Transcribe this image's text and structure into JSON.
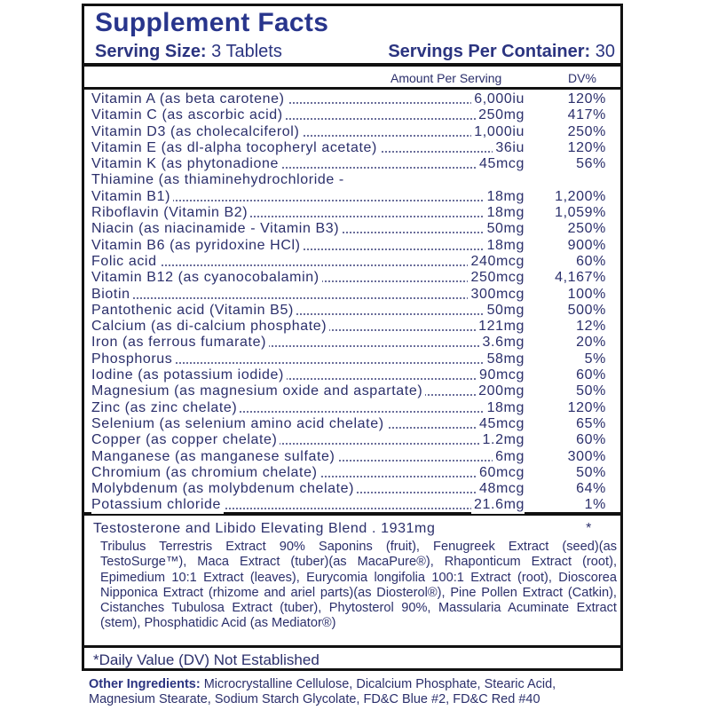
{
  "header": {
    "title": "Supplement Facts",
    "serving_size_label": "Serving Size:",
    "serving_size_value": "3 Tablets",
    "servings_label": "Servings Per Container:",
    "servings_value": "30"
  },
  "columns": {
    "amount": "Amount Per Serving",
    "dv": "DV%"
  },
  "nutrients": [
    {
      "name": "Vitamin A (as beta carotene)",
      "amount": "6,000iu",
      "dv": "120%"
    },
    {
      "name": "Vitamin C (as ascorbic acid)",
      "amount": "250mg",
      "dv": "417%"
    },
    {
      "name": "Vitamin D3 (as cholecalciferol)",
      "amount": "1,000iu",
      "dv": "250%"
    },
    {
      "name": "Vitamin E (as dl-alpha tocopheryl acetate)",
      "amount": "36iu",
      "dv": "120%"
    },
    {
      "name": "Vitamin K (as phytonadione",
      "amount": "45mcg",
      "dv": "56%"
    },
    {
      "name": "Thiamine (as thiaminehydrochloride -",
      "amount": "",
      "dv": ""
    },
    {
      "name": "Vitamin B1)",
      "amount": "18mg",
      "dv": "1,200%"
    },
    {
      "name": "Riboflavin (Vitamin B2)",
      "amount": "18mg",
      "dv": "1,059%"
    },
    {
      "name": "Niacin (as niacinamide - Vitamin B3)",
      "amount": "50mg",
      "dv": "250%"
    },
    {
      "name": "Vitamin B6 (as pyridoxine HCl)",
      "amount": "18mg",
      "dv": "900%"
    },
    {
      "name": "Folic acid",
      "amount": "240mcg",
      "dv": "60%"
    },
    {
      "name": "Vitamin B12 (as cyanocobalamin)",
      "amount": "250mcg",
      "dv": "4,167%"
    },
    {
      "name": "Biotin",
      "amount": "300mcg",
      "dv": "100%"
    },
    {
      "name": "Pantothenic acid (Vitamin B5)",
      "amount": "50mg",
      "dv": "500%"
    },
    {
      "name": "Calcium (as di-calcium phosphate)",
      "amount": "121mg",
      "dv": "12%"
    },
    {
      "name": "Iron (as ferrous fumarate)",
      "amount": "3.6mg",
      "dv": "20%"
    },
    {
      "name": "Phosphorus",
      "amount": "58mg",
      "dv": "5%"
    },
    {
      "name": "Iodine (as potassium iodide)",
      "amount": "90mcg",
      "dv": "60%"
    },
    {
      "name": "Magnesium (as magnesium oxide and aspartate)",
      "amount": "200mg",
      "dv": "50%"
    },
    {
      "name": "Zinc (as zinc chelate)",
      "amount": "18mg",
      "dv": "120%"
    },
    {
      "name": "Selenium (as selenium amino acid chelate)",
      "amount": "45mcg",
      "dv": "65%"
    },
    {
      "name": "Copper (as copper chelate)",
      "amount": "1.2mg",
      "dv": "60%"
    },
    {
      "name": "Manganese (as manganese sulfate)",
      "amount": "6mg",
      "dv": "300%"
    },
    {
      "name": "Chromium (as chromium chelate)",
      "amount": "60mcg",
      "dv": "50%"
    },
    {
      "name": "Molybdenum (as molybdenum chelate)",
      "amount": "48mcg",
      "dv": "64%"
    },
    {
      "name": "Potassium chloride",
      "amount": "21.6mg",
      "dv": "1%"
    }
  ],
  "blend": {
    "title": "Testosterone and Libido Elevating Blend  .  1931mg",
    "dv": "*",
    "ingredients": "Tribulus Terrestris Extract 90% Saponins (fruit), Fenugreek Extract (seed)(as TestoSurge™), Maca Extract (tuber)(as MacaPure®), Rhaponticum Extract (root), Epimedium 10:1 Extract (leaves), Eurycomia longifolia 100:1 Extract (root), Dioscorea Nipponica Extract (rhizome and ariel parts)(as Diosterol®), Pine Pollen Extract (Catkin), Cistanches Tubulosa Extract (tuber), Phytosterol 90%, Massularia Acuminate Extract (stem), Phosphatidic Acid (as Mediator®)"
  },
  "dv_note": "*Daily Value (DV) Not Established",
  "other": {
    "label": "Other Ingredients:",
    "text": "Microcrystalline Cellulose, Dicalcium Phosphate, Stearic Acid, Magnesium Stearate, Sodium Starch Glycolate, FD&C Blue #2, FD&C Red #40"
  }
}
